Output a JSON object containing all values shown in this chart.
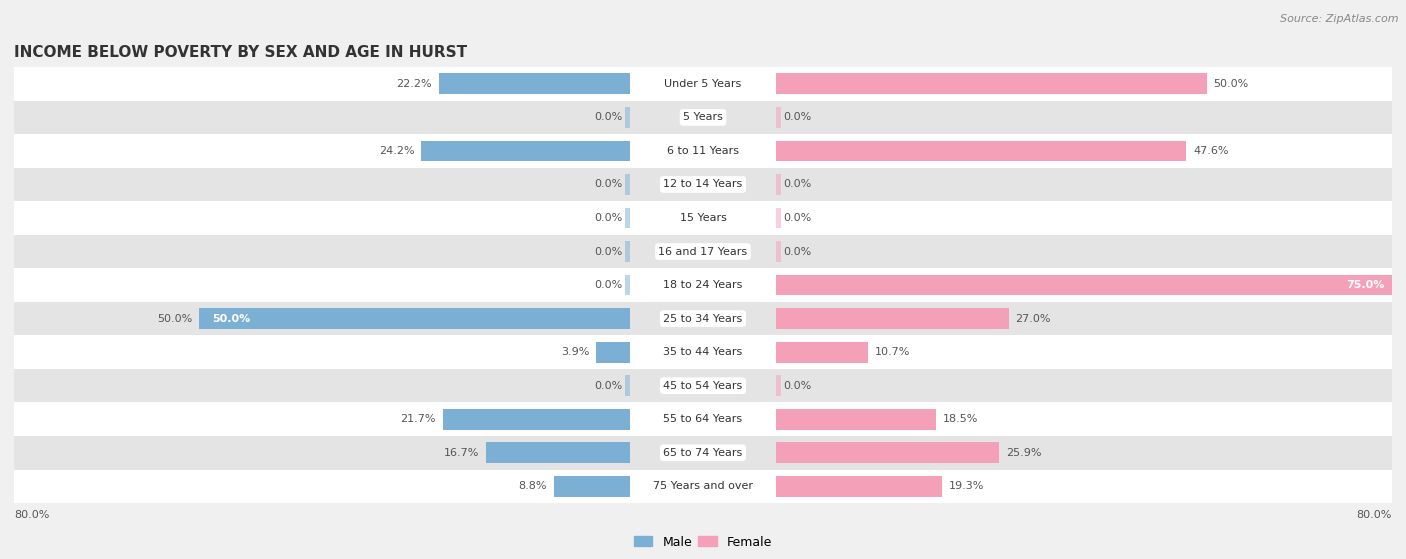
{
  "title": "INCOME BELOW POVERTY BY SEX AND AGE IN HURST",
  "source": "Source: ZipAtlas.com",
  "categories": [
    "Under 5 Years",
    "5 Years",
    "6 to 11 Years",
    "12 to 14 Years",
    "15 Years",
    "16 and 17 Years",
    "18 to 24 Years",
    "25 to 34 Years",
    "35 to 44 Years",
    "45 to 54 Years",
    "55 to 64 Years",
    "65 to 74 Years",
    "75 Years and over"
  ],
  "male": [
    22.2,
    0.0,
    24.2,
    0.0,
    0.0,
    0.0,
    0.0,
    50.0,
    3.9,
    0.0,
    21.7,
    16.7,
    8.8
  ],
  "female": [
    50.0,
    0.0,
    47.6,
    0.0,
    0.0,
    0.0,
    75.0,
    27.0,
    10.7,
    0.0,
    18.5,
    25.9,
    19.3
  ],
  "male_color": "#7BAFD4",
  "female_color": "#F4A0B8",
  "male_label": "Male",
  "female_label": "Female",
  "xlim": 80.0,
  "bar_height": 0.62,
  "background_color": "#f0f0f0",
  "row_bg_light": "#ffffff",
  "row_bg_dark": "#e4e4e4",
  "title_fontsize": 11,
  "source_fontsize": 8,
  "label_fontsize": 8,
  "cat_fontsize": 8,
  "legend_fontsize": 9
}
